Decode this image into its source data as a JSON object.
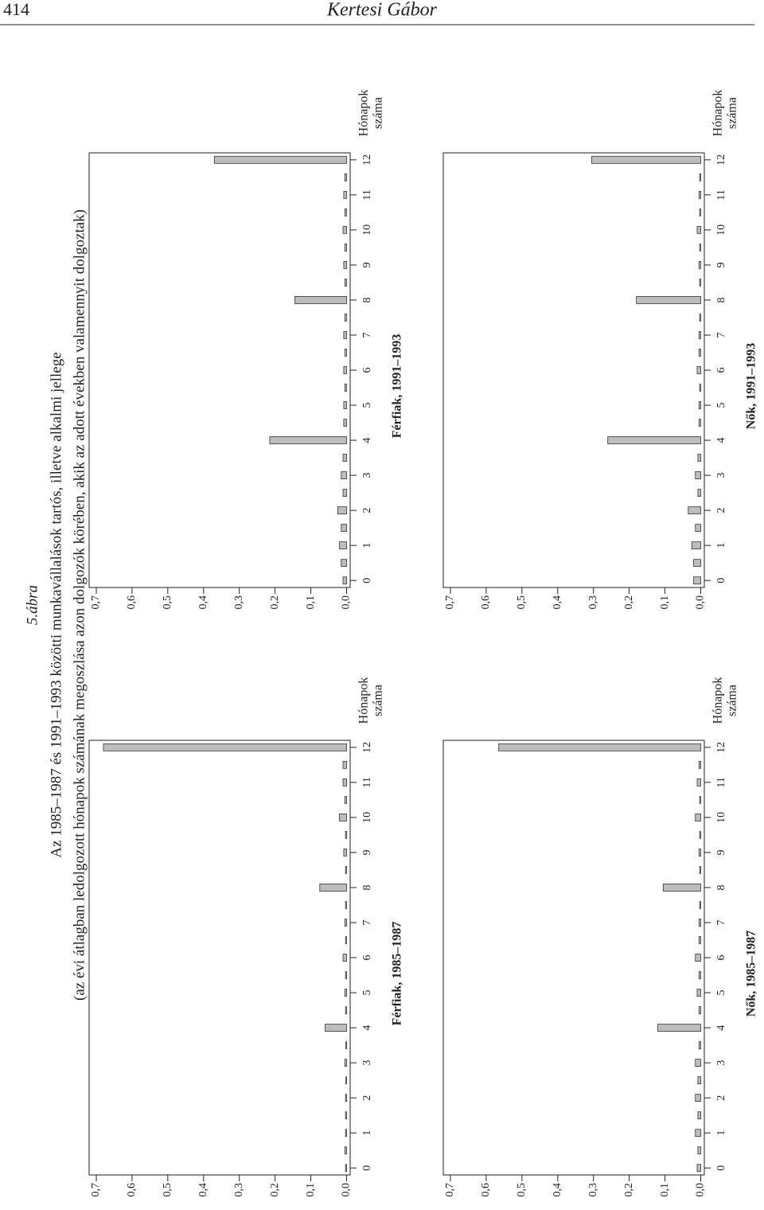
{
  "page_number": "414",
  "running_head": "Kertesi Gábor",
  "figure": {
    "label": "5.ábra",
    "title": "Az 1985–1987 és 1991–1993 közötti munkavállalások tartós, illetve alkalmi jellege",
    "subtitle": "(az évi átlagban ledolgozott hónapok számának megoszlása azon dolgozók körében, akik az adott években valamennyit dolgoztak)"
  },
  "chart_data": [
    {
      "type": "bar",
      "title": "Férfiak, 1985–1987",
      "x_label": [
        "Hónapok",
        "száma"
      ],
      "color": "#bdbdbd",
      "x": [
        0,
        0.5,
        1,
        1.5,
        2,
        2.5,
        3,
        3.5,
        4,
        4.5,
        5,
        5.5,
        6,
        6.5,
        7,
        7.5,
        8,
        8.5,
        9,
        9.5,
        10,
        10.5,
        11,
        11.5,
        12
      ],
      "values": [
        0.003,
        0.005,
        0.003,
        0.003,
        0.003,
        0.002,
        0.005,
        0.002,
        0.06,
        0.003,
        0.005,
        0.003,
        0.01,
        0.003,
        0.005,
        0.003,
        0.075,
        0.003,
        0.008,
        0.003,
        0.02,
        0.005,
        0.01,
        0.01,
        0.68
      ],
      "xlim": [
        -0.2,
        12.2
      ],
      "ylim": [
        -0.01,
        0.72
      ],
      "xticks": [
        0,
        1,
        2,
        3,
        4,
        5,
        6,
        7,
        8,
        9,
        10,
        11,
        12
      ],
      "yticks": [
        {
          "value": 0,
          "label": "0,0"
        },
        {
          "value": 0.1,
          "label": "0,1"
        },
        {
          "value": 0.2,
          "label": "0,2"
        },
        {
          "value": 0.3,
          "label": "0,3"
        },
        {
          "value": 0.4,
          "label": "0,4"
        },
        {
          "value": 0.5,
          "label": "0,5"
        },
        {
          "value": 0.6,
          "label": "0,6"
        },
        {
          "value": 0.7,
          "label": "0,7"
        }
      ]
    },
    {
      "type": "bar",
      "title": "Férfiak, 1991–1993",
      "x_label": [
        "Hónapok",
        "száma"
      ],
      "color": "#bdbdbd",
      "x": [
        0,
        0.5,
        1,
        1.5,
        2,
        2.5,
        3,
        3.5,
        4,
        4.5,
        5,
        5.5,
        6,
        6.5,
        7,
        7.5,
        8,
        8.5,
        9,
        9.5,
        10,
        10.5,
        11,
        11.5,
        12
      ],
      "values": [
        0.01,
        0.015,
        0.02,
        0.015,
        0.025,
        0.01,
        0.015,
        0.01,
        0.215,
        0.008,
        0.008,
        0.005,
        0.008,
        0.005,
        0.008,
        0.005,
        0.145,
        0.005,
        0.008,
        0.005,
        0.01,
        0.005,
        0.008,
        0.005,
        0.37
      ],
      "xlim": [
        -0.2,
        12.2
      ],
      "ylim": [
        -0.01,
        0.72
      ],
      "xticks": [
        0,
        1,
        2,
        3,
        4,
        5,
        6,
        7,
        8,
        9,
        10,
        11,
        12
      ],
      "yticks": [
        {
          "value": 0,
          "label": "0,0"
        },
        {
          "value": 0.1,
          "label": "0,1"
        },
        {
          "value": 0.2,
          "label": "0,2"
        },
        {
          "value": 0.3,
          "label": "0,3"
        },
        {
          "value": 0.4,
          "label": "0,4"
        },
        {
          "value": 0.5,
          "label": "0,5"
        },
        {
          "value": 0.6,
          "label": "0,6"
        },
        {
          "value": 0.7,
          "label": "0,7"
        }
      ]
    },
    {
      "type": "bar",
      "title": "Nők, 1985–1987",
      "x_label": [
        "Hónapok",
        "száma"
      ],
      "color": "#bdbdbd",
      "x": [
        0,
        0.5,
        1,
        1.5,
        2,
        2.5,
        3,
        3.5,
        4,
        4.5,
        5,
        5.5,
        6,
        6.5,
        7,
        7.5,
        8,
        8.5,
        9,
        9.5,
        10,
        10.5,
        11,
        11.5,
        12
      ],
      "values": [
        0.01,
        0.008,
        0.015,
        0.008,
        0.015,
        0.008,
        0.015,
        0.005,
        0.12,
        0.005,
        0.01,
        0.005,
        0.015,
        0.005,
        0.005,
        0.003,
        0.105,
        0.003,
        0.005,
        0.003,
        0.015,
        0.003,
        0.01,
        0.005,
        0.565
      ],
      "xlim": [
        -0.2,
        12.2
      ],
      "ylim": [
        -0.01,
        0.72
      ],
      "xticks": [
        0,
        1,
        2,
        3,
        4,
        5,
        6,
        7,
        8,
        9,
        10,
        11,
        12
      ],
      "yticks": [
        {
          "value": 0,
          "label": "0,0"
        },
        {
          "value": 0.1,
          "label": "0,1"
        },
        {
          "value": 0.2,
          "label": "0,2"
        },
        {
          "value": 0.3,
          "label": "0,3"
        },
        {
          "value": 0.4,
          "label": "0,4"
        },
        {
          "value": 0.5,
          "label": "0,5"
        },
        {
          "value": 0.6,
          "label": "0,6"
        },
        {
          "value": 0.7,
          "label": "0,7"
        }
      ]
    },
    {
      "type": "bar",
      "title": "Nők, 1991–1993",
      "x_label": [
        "Hónapok",
        "száma"
      ],
      "color": "#bdbdbd",
      "x": [
        0,
        0.5,
        1,
        1.5,
        2,
        2.5,
        3,
        3.5,
        4,
        4.5,
        5,
        5.5,
        6,
        6.5,
        7,
        7.5,
        8,
        8.5,
        9,
        9.5,
        10,
        10.5,
        11,
        11.5,
        12
      ],
      "values": [
        0.02,
        0.02,
        0.025,
        0.015,
        0.035,
        0.008,
        0.015,
        0.008,
        0.26,
        0.005,
        0.005,
        0.003,
        0.01,
        0.005,
        0.005,
        0.003,
        0.18,
        0.003,
        0.005,
        0.003,
        0.01,
        0.003,
        0.005,
        0.003,
        0.305
      ],
      "xlim": [
        -0.2,
        12.2
      ],
      "ylim": [
        -0.01,
        0.72
      ],
      "xticks": [
        0,
        1,
        2,
        3,
        4,
        5,
        6,
        7,
        8,
        9,
        10,
        11,
        12
      ],
      "yticks": [
        {
          "value": 0,
          "label": "0,0"
        },
        {
          "value": 0.1,
          "label": "0,1"
        },
        {
          "value": 0.2,
          "label": "0,2"
        },
        {
          "value": 0.3,
          "label": "0,3"
        },
        {
          "value": 0.4,
          "label": "0,4"
        },
        {
          "value": 0.5,
          "label": "0,5"
        },
        {
          "value": 0.6,
          "label": "0,6"
        },
        {
          "value": 0.7,
          "label": "0,7"
        }
      ]
    }
  ]
}
